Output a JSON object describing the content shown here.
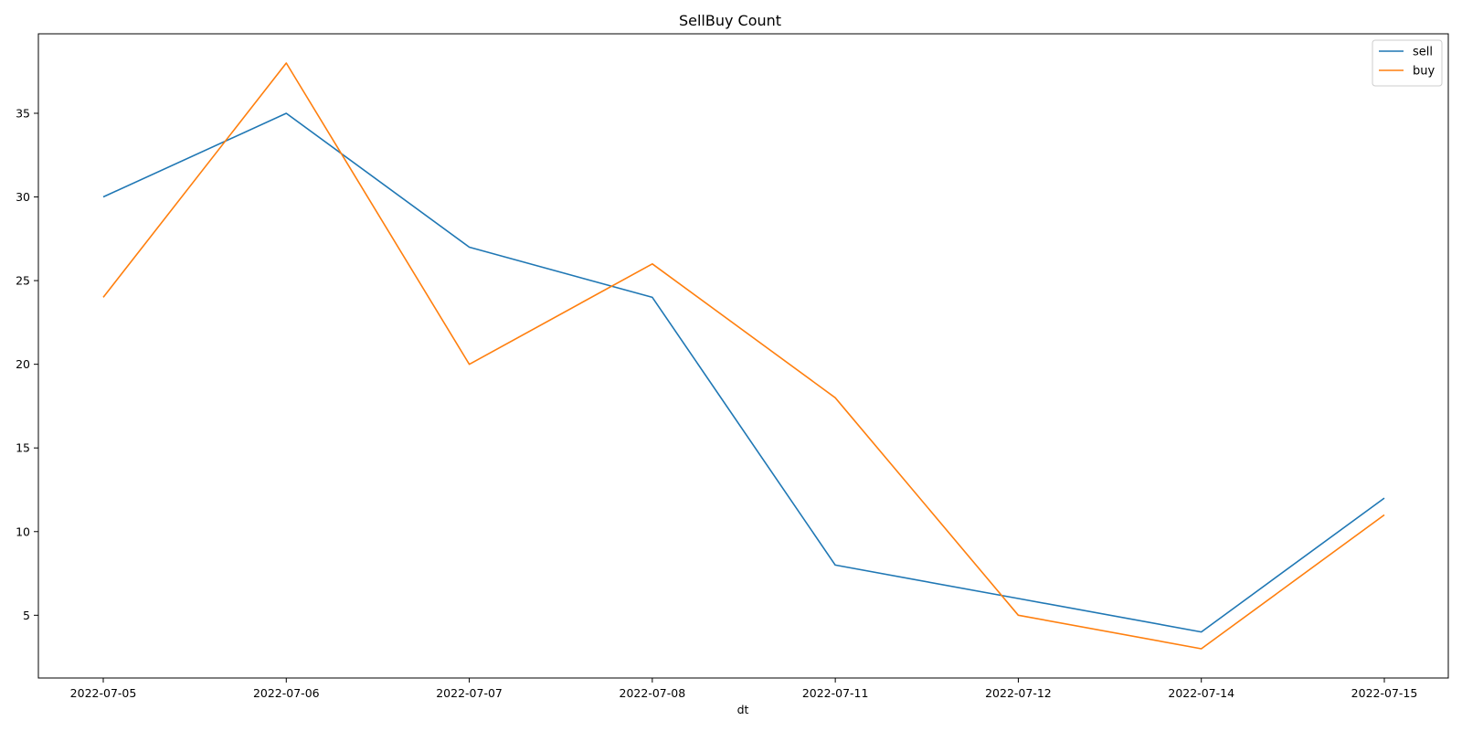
{
  "chart_data": {
    "type": "line",
    "title": "SellBuy Count",
    "xlabel": "dt",
    "ylabel": "",
    "categories": [
      "2022-07-05",
      "2022-07-06",
      "2022-07-07",
      "2022-07-08",
      "2022-07-11",
      "2022-07-12",
      "2022-07-14",
      "2022-07-15"
    ],
    "yticks": [
      5,
      10,
      15,
      20,
      25,
      30,
      35
    ],
    "ylim": [
      1.25,
      39.75
    ],
    "grid": false,
    "legend_position": "top-right",
    "series": [
      {
        "name": "sell",
        "color": "#1f77b4",
        "values": [
          30,
          35,
          27,
          24,
          8,
          6,
          4,
          12
        ]
      },
      {
        "name": "buy",
        "color": "#ff7f0e",
        "values": [
          24,
          38,
          20,
          26,
          18,
          5,
          3,
          11
        ]
      }
    ]
  }
}
